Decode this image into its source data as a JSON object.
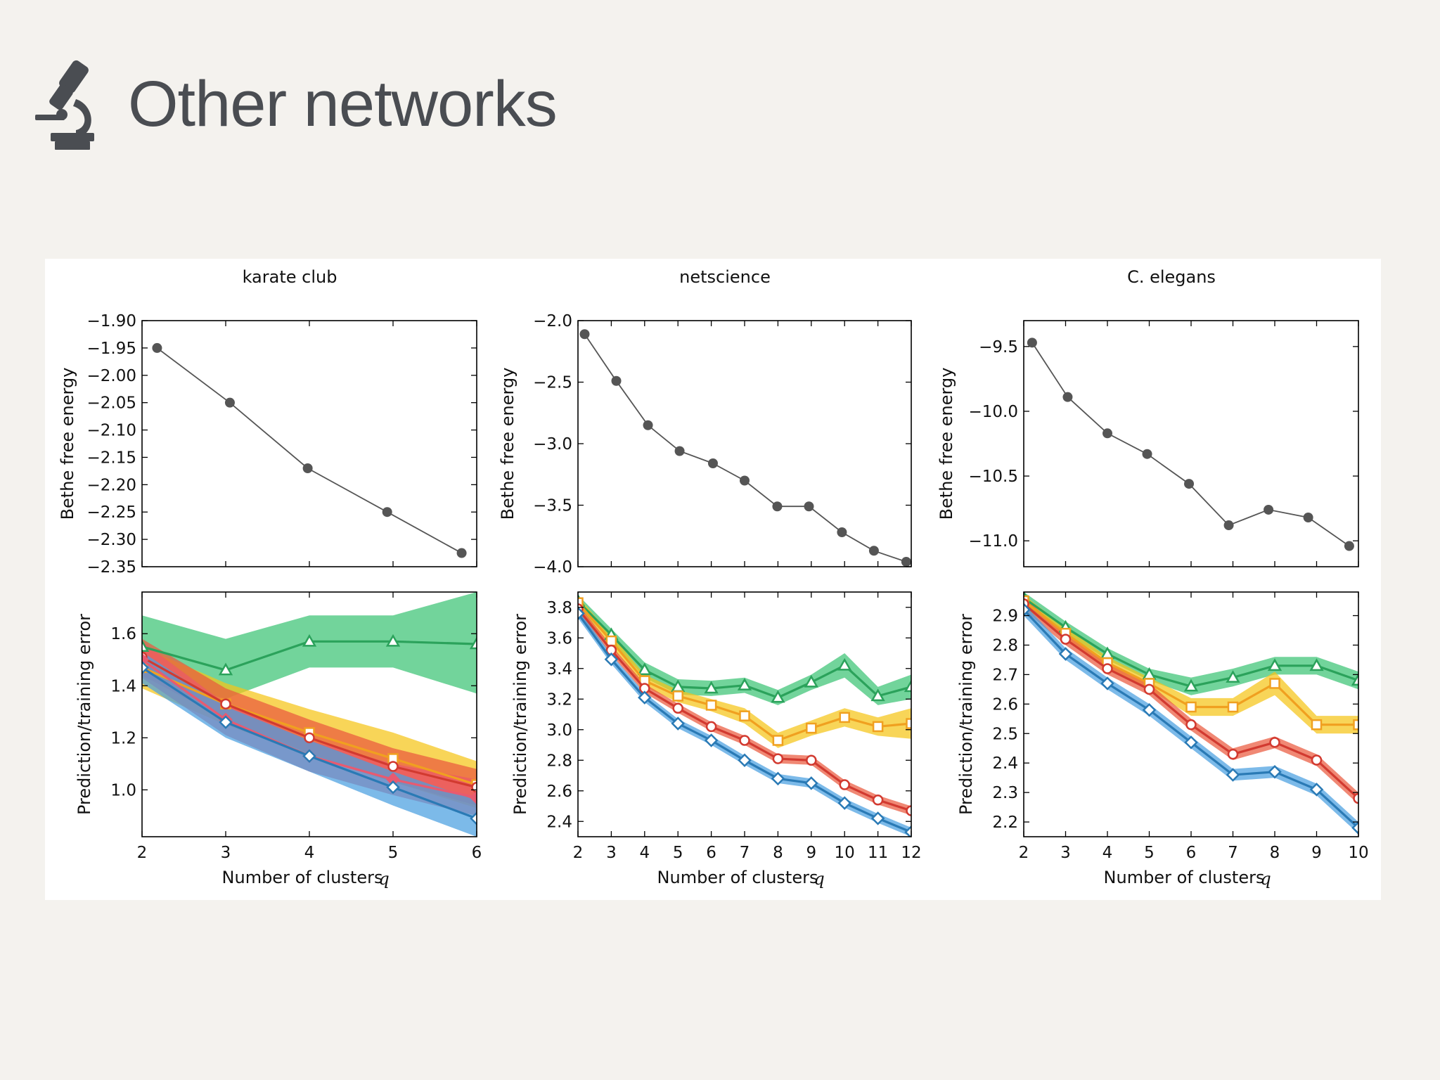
{
  "slide": {
    "title": "Other networks",
    "icon": "microscope-icon",
    "colors": {
      "title": "#4a4d52",
      "icon": "#4a4d52",
      "background": "#f4f2ee"
    }
  },
  "chart_data": [
    {
      "id": "karate-energy",
      "type": "line",
      "title": "karate club",
      "xlabel": "",
      "ylabel": "Bethe free energy",
      "xlim": [
        2,
        6
      ],
      "ylim": [
        -2.35,
        -1.9
      ],
      "xticks": [
        2,
        3,
        4,
        5,
        6
      ],
      "show_xticklabels": false,
      "yticks": [
        -2.35,
        -2.3,
        -2.25,
        -2.2,
        -2.15,
        -2.1,
        -2.05,
        -2.0,
        -1.95,
        -1.9
      ],
      "ytick_labels": [
        "−2.35",
        "−2.30",
        "−2.25",
        "−2.20",
        "−2.15",
        "−2.10",
        "−2.05",
        "−2.00",
        "−1.95",
        "−1.90"
      ],
      "series": [
        {
          "x": [
            2.18,
            3.05,
            3.98,
            4.93,
            5.82
          ],
          "y": [
            -1.95,
            -2.05,
            -2.17,
            -2.25,
            -2.325
          ],
          "color": "#555555",
          "marker": "dot"
        }
      ]
    },
    {
      "id": "netscience-energy",
      "type": "line",
      "title": "netscience",
      "xlabel": "",
      "ylabel": "Bethe free energy",
      "xlim": [
        2,
        12
      ],
      "ylim": [
        -4.0,
        -2.0
      ],
      "xticks": [
        2,
        3,
        4,
        5,
        6,
        7,
        8,
        9,
        10,
        11,
        12
      ],
      "show_xticklabels": false,
      "yticks": [
        -4.0,
        -3.5,
        -3.0,
        -2.5,
        -2.0
      ],
      "ytick_labels": [
        "−4.0",
        "−3.5",
        "−3.0",
        "−2.5",
        "−2.0"
      ],
      "series": [
        {
          "x": [
            2.2,
            3.15,
            4.1,
            5.05,
            6.05,
            7.0,
            7.98,
            8.93,
            9.92,
            10.88,
            11.85
          ],
          "y": [
            -2.11,
            -2.49,
            -2.85,
            -3.06,
            -3.16,
            -3.3,
            -3.51,
            -3.51,
            -3.72,
            -3.87,
            -3.96
          ],
          "color": "#555555",
          "marker": "dot"
        }
      ]
    },
    {
      "id": "elegans-energy",
      "type": "line",
      "title": "C. elegans",
      "xlabel": "",
      "ylabel": "Bethe free energy",
      "xlim": [
        2,
        10
      ],
      "ylim": [
        -11.2,
        -9.3
      ],
      "xticks": [
        2,
        3,
        4,
        5,
        6,
        7,
        8,
        9,
        10
      ],
      "show_xticklabels": false,
      "yticks": [
        -11.0,
        -10.5,
        -10.0,
        -9.5
      ],
      "ytick_labels": [
        "−11.0",
        "−10.5",
        "−10.0",
        "−9.5"
      ],
      "series": [
        {
          "x": [
            2.2,
            3.05,
            4.0,
            4.95,
            5.95,
            6.9,
            7.85,
            8.8,
            9.78
          ],
          "y": [
            -9.47,
            -9.89,
            -10.17,
            -10.33,
            -10.56,
            -10.88,
            -10.76,
            -10.82,
            -11.04
          ],
          "color": "#555555",
          "marker": "dot"
        }
      ]
    },
    {
      "id": "karate-error",
      "type": "line",
      "title": "",
      "xlabel": "Number of clusters",
      "xlabel_var": "q",
      "ylabel": "Prediction/training error",
      "xlim": [
        2,
        6
      ],
      "ylim": [
        0.82,
        1.76
      ],
      "xticks": [
        2,
        3,
        4,
        5,
        6
      ],
      "show_xticklabels": true,
      "yticks": [
        1.0,
        1.2,
        1.4,
        1.6
      ],
      "ytick_labels": [
        "1.0",
        "1.2",
        "1.4",
        "1.6"
      ],
      "series": [
        {
          "color": "#2ba25b",
          "band": "#3cc475",
          "marker": "triangle",
          "x": [
            2,
            3,
            4,
            5,
            6
          ],
          "y": [
            1.55,
            1.46,
            1.57,
            1.57,
            1.56
          ],
          "lo": [
            1.43,
            1.35,
            1.47,
            1.47,
            1.37
          ],
          "hi": [
            1.67,
            1.58,
            1.67,
            1.67,
            1.76
          ]
        },
        {
          "color": "#f0a020",
          "band": "#f5c518",
          "marker": "square",
          "x": [
            2,
            3,
            4,
            5,
            6
          ],
          "y": [
            1.47,
            1.33,
            1.22,
            1.12,
            1.02
          ],
          "lo": [
            1.39,
            1.25,
            1.13,
            1.03,
            0.93
          ],
          "hi": [
            1.55,
            1.41,
            1.31,
            1.22,
            1.11
          ]
        },
        {
          "color": "#d23a30",
          "band": "#ea5a3e",
          "marker": "circle",
          "x": [
            2,
            3,
            4,
            5,
            6
          ],
          "y": [
            1.51,
            1.33,
            1.2,
            1.09,
            1.01
          ],
          "lo": [
            1.44,
            1.27,
            1.14,
            1.03,
            0.94
          ],
          "hi": [
            1.58,
            1.39,
            1.27,
            1.16,
            1.08
          ]
        },
        {
          "color": "#e85a70",
          "band": "#ec5868",
          "marker": "diamond-filled",
          "x": [
            2,
            3,
            4,
            5,
            6
          ],
          "y": [
            1.5,
            1.27,
            1.13,
            1.04,
            0.97
          ],
          "lo": [
            1.43,
            1.21,
            1.07,
            0.98,
            0.9
          ],
          "hi": [
            1.57,
            1.33,
            1.19,
            1.1,
            1.04
          ]
        },
        {
          "color": "#2a7ab5",
          "band": "#4aa0e0",
          "marker": "diamond",
          "x": [
            2,
            3,
            4,
            5,
            6
          ],
          "y": [
            1.47,
            1.26,
            1.13,
            1.01,
            0.89
          ],
          "lo": [
            1.41,
            1.2,
            1.07,
            0.94,
            0.82
          ],
          "hi": [
            1.53,
            1.32,
            1.19,
            1.07,
            0.96
          ]
        }
      ]
    },
    {
      "id": "netscience-error",
      "type": "line",
      "title": "",
      "xlabel": "Number of clusters",
      "xlabel_var": "q",
      "ylabel": "Prediction/training error",
      "xlim": [
        2,
        12
      ],
      "ylim": [
        2.3,
        3.9
      ],
      "xticks": [
        2,
        3,
        4,
        5,
        6,
        7,
        8,
        9,
        10,
        11,
        12
      ],
      "show_xticklabels": true,
      "yticks": [
        2.4,
        2.6,
        2.8,
        3.0,
        3.2,
        3.4,
        3.6,
        3.8
      ],
      "ytick_labels": [
        "2.4",
        "2.6",
        "2.8",
        "3.0",
        "3.2",
        "3.4",
        "3.6",
        "3.8"
      ],
      "series": [
        {
          "color": "#2ba25b",
          "band": "#3cc475",
          "marker": "triangle",
          "x": [
            2,
            3,
            4,
            5,
            6,
            7,
            8,
            9,
            10,
            11,
            12
          ],
          "y": [
            3.84,
            3.62,
            3.39,
            3.28,
            3.27,
            3.29,
            3.21,
            3.31,
            3.42,
            3.22,
            3.28
          ],
          "lo": [
            3.8,
            3.58,
            3.34,
            3.23,
            3.22,
            3.24,
            3.16,
            3.26,
            3.34,
            3.16,
            3.2
          ],
          "hi": [
            3.88,
            3.66,
            3.44,
            3.33,
            3.32,
            3.34,
            3.26,
            3.36,
            3.5,
            3.28,
            3.36
          ]
        },
        {
          "color": "#f0a020",
          "band": "#f5c518",
          "marker": "square",
          "x": [
            2,
            3,
            4,
            5,
            6,
            7,
            8,
            9,
            10,
            11,
            12
          ],
          "y": [
            3.83,
            3.58,
            3.32,
            3.22,
            3.16,
            3.09,
            2.93,
            3.01,
            3.08,
            3.02,
            3.04
          ],
          "lo": [
            3.79,
            3.54,
            3.28,
            3.18,
            3.12,
            3.04,
            2.88,
            2.96,
            3.02,
            2.96,
            2.94
          ],
          "hi": [
            3.87,
            3.62,
            3.36,
            3.26,
            3.2,
            3.14,
            2.98,
            3.06,
            3.14,
            3.08,
            3.14
          ]
        },
        {
          "color": "#d23a30",
          "band": "#ea5a3e",
          "marker": "circle",
          "x": [
            2,
            3,
            4,
            5,
            6,
            7,
            8,
            9,
            10,
            11,
            12
          ],
          "y": [
            3.79,
            3.52,
            3.27,
            3.14,
            3.02,
            2.93,
            2.81,
            2.8,
            2.64,
            2.54,
            2.47
          ],
          "lo": [
            3.76,
            3.49,
            3.24,
            3.11,
            2.99,
            2.9,
            2.78,
            2.77,
            2.61,
            2.51,
            2.44
          ],
          "hi": [
            3.82,
            3.55,
            3.3,
            3.17,
            3.05,
            2.96,
            2.84,
            2.83,
            2.67,
            2.57,
            2.5
          ]
        },
        {
          "color": "#2a7ab5",
          "band": "#4aa0e0",
          "marker": "diamond",
          "x": [
            2,
            3,
            4,
            5,
            6,
            7,
            8,
            9,
            10,
            11,
            12
          ],
          "y": [
            3.76,
            3.46,
            3.21,
            3.04,
            2.93,
            2.8,
            2.68,
            2.65,
            2.52,
            2.42,
            2.33
          ],
          "lo": [
            3.73,
            3.43,
            3.18,
            3.01,
            2.9,
            2.77,
            2.65,
            2.62,
            2.49,
            2.39,
            2.3
          ],
          "hi": [
            3.79,
            3.49,
            3.24,
            3.07,
            2.96,
            2.83,
            2.71,
            2.68,
            2.55,
            2.45,
            2.36
          ]
        }
      ]
    },
    {
      "id": "elegans-error",
      "type": "line",
      "title": "",
      "xlabel": "Number of clusters",
      "xlabel_var": "q",
      "ylabel": "Prediction/training error",
      "xlim": [
        2,
        10
      ],
      "ylim": [
        2.15,
        2.98
      ],
      "xticks": [
        2,
        3,
        4,
        5,
        6,
        7,
        8,
        9,
        10
      ],
      "show_xticklabels": true,
      "yticks": [
        2.2,
        2.3,
        2.4,
        2.5,
        2.6,
        2.7,
        2.8,
        2.9
      ],
      "ytick_labels": [
        "2.2",
        "2.3",
        "2.4",
        "2.5",
        "2.6",
        "2.7",
        "2.8",
        "2.9"
      ],
      "series": [
        {
          "color": "#2ba25b",
          "band": "#3cc475",
          "marker": "triangle",
          "x": [
            2,
            3,
            4,
            5,
            6,
            7,
            8,
            9,
            10
          ],
          "y": [
            2.96,
            2.86,
            2.77,
            2.7,
            2.66,
            2.69,
            2.73,
            2.73,
            2.68
          ],
          "lo": [
            2.94,
            2.84,
            2.75,
            2.68,
            2.63,
            2.66,
            2.7,
            2.7,
            2.65
          ],
          "hi": [
            2.98,
            2.88,
            2.79,
            2.72,
            2.69,
            2.72,
            2.76,
            2.76,
            2.71
          ]
        },
        {
          "color": "#f0a020",
          "band": "#f5c518",
          "marker": "square",
          "x": [
            2,
            3,
            4,
            5,
            6,
            7,
            8,
            9,
            10
          ],
          "y": [
            2.95,
            2.84,
            2.74,
            2.67,
            2.59,
            2.59,
            2.67,
            2.53,
            2.53
          ],
          "lo": [
            2.93,
            2.82,
            2.72,
            2.65,
            2.56,
            2.56,
            2.63,
            2.5,
            2.5
          ],
          "hi": [
            2.97,
            2.86,
            2.76,
            2.69,
            2.62,
            2.62,
            2.71,
            2.56,
            2.56
          ]
        },
        {
          "color": "#d23a30",
          "band": "#ea5a3e",
          "marker": "circle",
          "x": [
            2,
            3,
            4,
            5,
            6,
            7,
            8,
            9,
            10
          ],
          "y": [
            2.94,
            2.82,
            2.72,
            2.65,
            2.53,
            2.43,
            2.47,
            2.41,
            2.28
          ],
          "lo": [
            2.92,
            2.8,
            2.7,
            2.63,
            2.51,
            2.41,
            2.45,
            2.39,
            2.26
          ],
          "hi": [
            2.96,
            2.84,
            2.74,
            2.67,
            2.55,
            2.45,
            2.49,
            2.43,
            2.3
          ]
        },
        {
          "color": "#2a7ab5",
          "band": "#4aa0e0",
          "marker": "diamond",
          "x": [
            2,
            3,
            4,
            5,
            6,
            7,
            8,
            9,
            10
          ],
          "y": [
            2.92,
            2.77,
            2.67,
            2.58,
            2.47,
            2.36,
            2.37,
            2.31,
            2.18
          ],
          "lo": [
            2.9,
            2.75,
            2.65,
            2.56,
            2.45,
            2.34,
            2.35,
            2.29,
            2.16
          ],
          "hi": [
            2.94,
            2.79,
            2.69,
            2.6,
            2.49,
            2.38,
            2.39,
            2.33,
            2.2
          ]
        }
      ]
    }
  ]
}
